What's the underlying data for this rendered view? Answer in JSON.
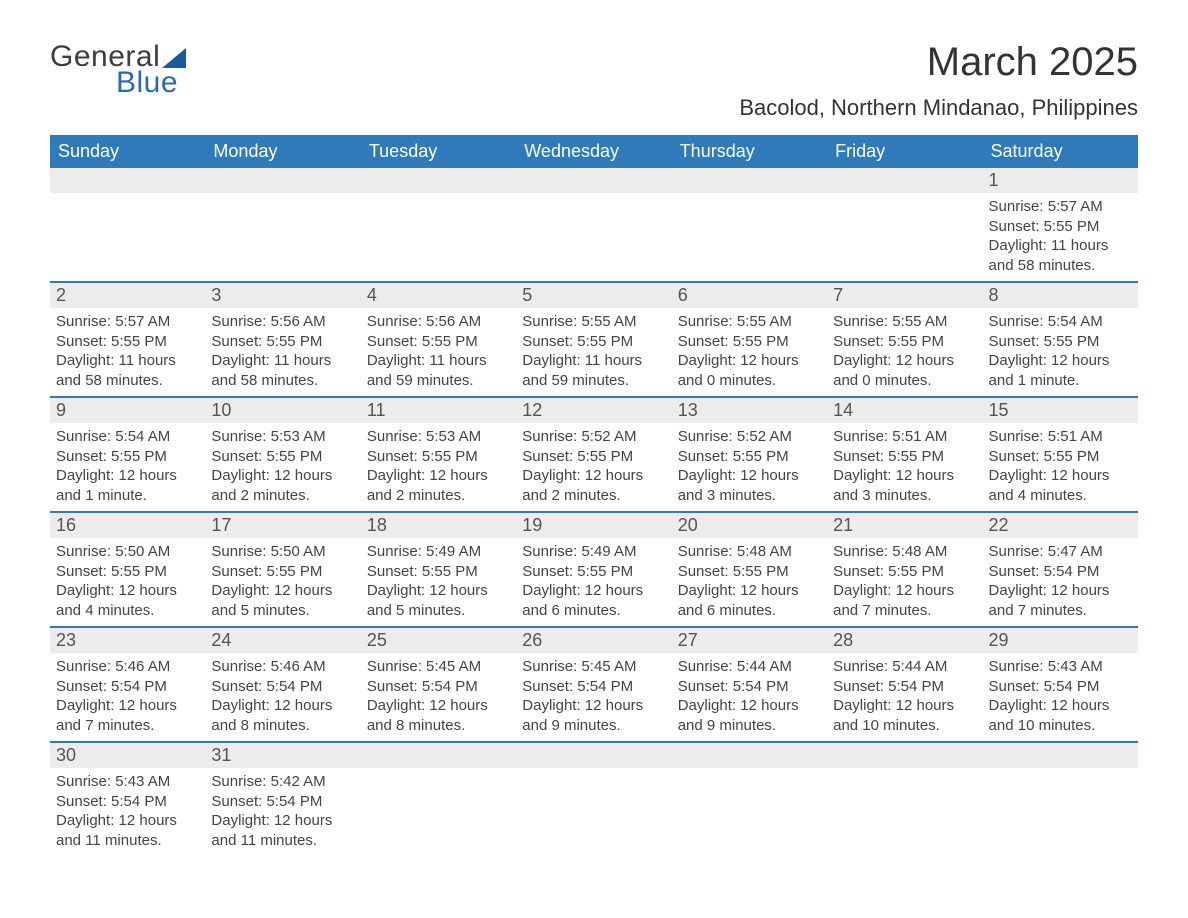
{
  "logo": {
    "text1": "General",
    "text2": "Blue"
  },
  "title": "March 2025",
  "location": "Bacolod, Northern Mindanao, Philippines",
  "columns": [
    "Sunday",
    "Monday",
    "Tuesday",
    "Wednesday",
    "Thursday",
    "Friday",
    "Saturday"
  ],
  "header_bg": "#2f7ab8",
  "header_fg": "#ffffff",
  "row_border_color": "#2f7ab8",
  "daynum_bg": "#ececec",
  "text_color": "#444444",
  "weeks": [
    [
      null,
      null,
      null,
      null,
      null,
      null,
      {
        "d": "1",
        "sunrise": "5:57 AM",
        "sunset": "5:55 PM",
        "daylight": "11 hours and 58 minutes."
      }
    ],
    [
      {
        "d": "2",
        "sunrise": "5:57 AM",
        "sunset": "5:55 PM",
        "daylight": "11 hours and 58 minutes."
      },
      {
        "d": "3",
        "sunrise": "5:56 AM",
        "sunset": "5:55 PM",
        "daylight": "11 hours and 58 minutes."
      },
      {
        "d": "4",
        "sunrise": "5:56 AM",
        "sunset": "5:55 PM",
        "daylight": "11 hours and 59 minutes."
      },
      {
        "d": "5",
        "sunrise": "5:55 AM",
        "sunset": "5:55 PM",
        "daylight": "11 hours and 59 minutes."
      },
      {
        "d": "6",
        "sunrise": "5:55 AM",
        "sunset": "5:55 PM",
        "daylight": "12 hours and 0 minutes."
      },
      {
        "d": "7",
        "sunrise": "5:55 AM",
        "sunset": "5:55 PM",
        "daylight": "12 hours and 0 minutes."
      },
      {
        "d": "8",
        "sunrise": "5:54 AM",
        "sunset": "5:55 PM",
        "daylight": "12 hours and 1 minute."
      }
    ],
    [
      {
        "d": "9",
        "sunrise": "5:54 AM",
        "sunset": "5:55 PM",
        "daylight": "12 hours and 1 minute."
      },
      {
        "d": "10",
        "sunrise": "5:53 AM",
        "sunset": "5:55 PM",
        "daylight": "12 hours and 2 minutes."
      },
      {
        "d": "11",
        "sunrise": "5:53 AM",
        "sunset": "5:55 PM",
        "daylight": "12 hours and 2 minutes."
      },
      {
        "d": "12",
        "sunrise": "5:52 AM",
        "sunset": "5:55 PM",
        "daylight": "12 hours and 2 minutes."
      },
      {
        "d": "13",
        "sunrise": "5:52 AM",
        "sunset": "5:55 PM",
        "daylight": "12 hours and 3 minutes."
      },
      {
        "d": "14",
        "sunrise": "5:51 AM",
        "sunset": "5:55 PM",
        "daylight": "12 hours and 3 minutes."
      },
      {
        "d": "15",
        "sunrise": "5:51 AM",
        "sunset": "5:55 PM",
        "daylight": "12 hours and 4 minutes."
      }
    ],
    [
      {
        "d": "16",
        "sunrise": "5:50 AM",
        "sunset": "5:55 PM",
        "daylight": "12 hours and 4 minutes."
      },
      {
        "d": "17",
        "sunrise": "5:50 AM",
        "sunset": "5:55 PM",
        "daylight": "12 hours and 5 minutes."
      },
      {
        "d": "18",
        "sunrise": "5:49 AM",
        "sunset": "5:55 PM",
        "daylight": "12 hours and 5 minutes."
      },
      {
        "d": "19",
        "sunrise": "5:49 AM",
        "sunset": "5:55 PM",
        "daylight": "12 hours and 6 minutes."
      },
      {
        "d": "20",
        "sunrise": "5:48 AM",
        "sunset": "5:55 PM",
        "daylight": "12 hours and 6 minutes."
      },
      {
        "d": "21",
        "sunrise": "5:48 AM",
        "sunset": "5:55 PM",
        "daylight": "12 hours and 7 minutes."
      },
      {
        "d": "22",
        "sunrise": "5:47 AM",
        "sunset": "5:54 PM",
        "daylight": "12 hours and 7 minutes."
      }
    ],
    [
      {
        "d": "23",
        "sunrise": "5:46 AM",
        "sunset": "5:54 PM",
        "daylight": "12 hours and 7 minutes."
      },
      {
        "d": "24",
        "sunrise": "5:46 AM",
        "sunset": "5:54 PM",
        "daylight": "12 hours and 8 minutes."
      },
      {
        "d": "25",
        "sunrise": "5:45 AM",
        "sunset": "5:54 PM",
        "daylight": "12 hours and 8 minutes."
      },
      {
        "d": "26",
        "sunrise": "5:45 AM",
        "sunset": "5:54 PM",
        "daylight": "12 hours and 9 minutes."
      },
      {
        "d": "27",
        "sunrise": "5:44 AM",
        "sunset": "5:54 PM",
        "daylight": "12 hours and 9 minutes."
      },
      {
        "d": "28",
        "sunrise": "5:44 AM",
        "sunset": "5:54 PM",
        "daylight": "12 hours and 10 minutes."
      },
      {
        "d": "29",
        "sunrise": "5:43 AM",
        "sunset": "5:54 PM",
        "daylight": "12 hours and 10 minutes."
      }
    ],
    [
      {
        "d": "30",
        "sunrise": "5:43 AM",
        "sunset": "5:54 PM",
        "daylight": "12 hours and 11 minutes."
      },
      {
        "d": "31",
        "sunrise": "5:42 AM",
        "sunset": "5:54 PM",
        "daylight": "12 hours and 11 minutes."
      },
      null,
      null,
      null,
      null,
      null
    ]
  ],
  "labels": {
    "sunrise": "Sunrise: ",
    "sunset": "Sunset: ",
    "daylight": "Daylight: "
  }
}
